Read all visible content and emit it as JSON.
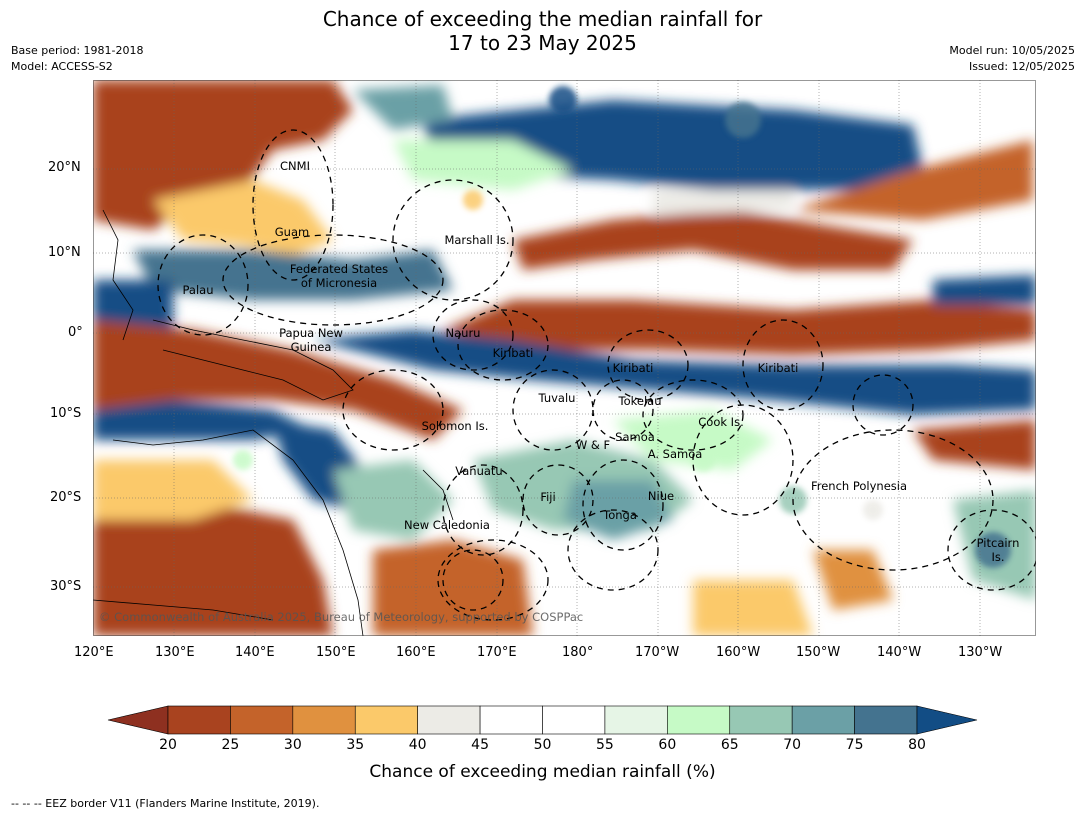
{
  "title_line1": "Chance of exceeding the median rainfall for",
  "title_line2": "17 to 23 May 2025",
  "base_period": "Base period: 1981-2018",
  "model": "Model: ACCESS-S2",
  "model_run": "Model run: 10/05/2025",
  "issued": "Issued: 12/05/2025",
  "lat_ticks": [
    "20°N",
    "10°N",
    "0°",
    "10°S",
    "20°S",
    "30°S"
  ],
  "lon_ticks": [
    "120°E",
    "130°E",
    "140°E",
    "150°E",
    "160°E",
    "170°E",
    "180°",
    "170°W",
    "160°W",
    "150°W",
    "140°W",
    "130°W"
  ],
  "region_labels": [
    "CNMI",
    "Guam",
    "Marshall Is.",
    "Federated States",
    "of Micronesia",
    "Palau",
    "Papua New",
    "Guinea",
    "Nauru",
    "Kiribati",
    "Kiribati",
    "Kiribati",
    "Tuvalu",
    "Tokelau",
    "Cook Is.",
    "Solomon Is.",
    "Samoa",
    "W & F",
    "A. Samoa",
    "Vanuatu",
    "Fiji",
    "Niue",
    "French Polynesia",
    "Tonga",
    "New Caledonia",
    "Pitcairn",
    "Is."
  ],
  "copyright": "© Commonwealth of Australia 2025, Bureau of Meteorology, supported by COSPPac",
  "colorbar": {
    "ticks": [
      "20",
      "25",
      "30",
      "35",
      "40",
      "45",
      "50",
      "55",
      "60",
      "65",
      "70",
      "75",
      "80"
    ],
    "colors": [
      "#a9431f",
      "#c4632a",
      "#e0913f",
      "#fbc96a",
      "#ecebe6",
      "#ffffff",
      "#ffffff",
      "#e6f5e6",
      "#c6fac6",
      "#97c8b4",
      "#6ba0a6",
      "#44738f"
    ],
    "low_color": "#8e3020",
    "high_color": "#124d85",
    "title": "Chance of exceeding median rainfall (%)"
  },
  "footer": "--  --  -- EEZ border V11 (Flanders Marine Institute, 2019)."
}
